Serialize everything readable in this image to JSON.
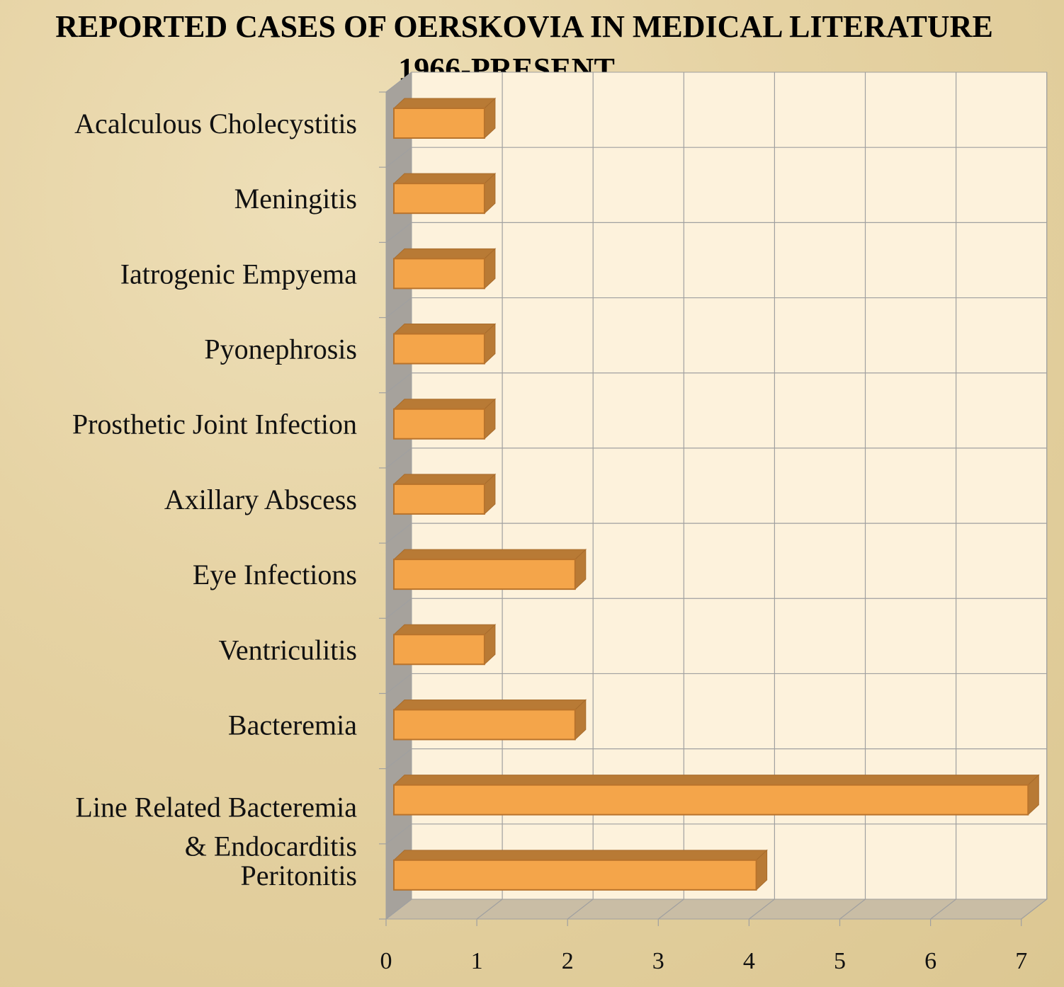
{
  "chart_data": {
    "type": "bar",
    "orientation": "horizontal",
    "style": "3d",
    "title_line1": "REPORTED CASES OF OERSKOVIA IN  MEDICAL LITERATURE",
    "title_line2": "1966-PRESENT",
    "categories": [
      "Acalculous Cholecystitis",
      "Meningitis",
      "Iatrogenic Empyema",
      "Pyonephrosis",
      "Prosthetic Joint Infection",
      "Axillary Abscess",
      "Eye Infections",
      "Ventriculitis",
      "Bacteremia",
      "Line Related Bacteremia & Endocarditis",
      "Peritonitis"
    ],
    "category_label_lines": [
      [
        "Acalculous Cholecystitis"
      ],
      [
        "Meningitis"
      ],
      [
        "Iatrogenic Empyema"
      ],
      [
        "Pyonephrosis"
      ],
      [
        "Prosthetic Joint Infection"
      ],
      [
        "Axillary Abscess"
      ],
      [
        "Eye Infections"
      ],
      [
        "Ventriculitis"
      ],
      [
        "Bacteremia"
      ],
      [
        "Line Related Bacteremia",
        "& Endocarditis"
      ],
      [
        "Peritonitis"
      ]
    ],
    "values": [
      1,
      1,
      1,
      1,
      1,
      1,
      2,
      1,
      2,
      7,
      4
    ],
    "xlim": [
      0,
      7
    ],
    "x_ticks": [
      "0",
      "1",
      "2",
      "3",
      "4",
      "5",
      "6",
      "7"
    ],
    "xlabel": "",
    "ylabel": "",
    "grid": true,
    "legend": "none",
    "colors": {
      "bar_front": "#f4a54a",
      "bar_top": "#b87a35",
      "bar_side": "#b87a35",
      "back_wall": "#fdf2dc",
      "side_wall": "#a6a29c",
      "floor": "#c9bda5",
      "grid": "#a0a0a0"
    }
  }
}
